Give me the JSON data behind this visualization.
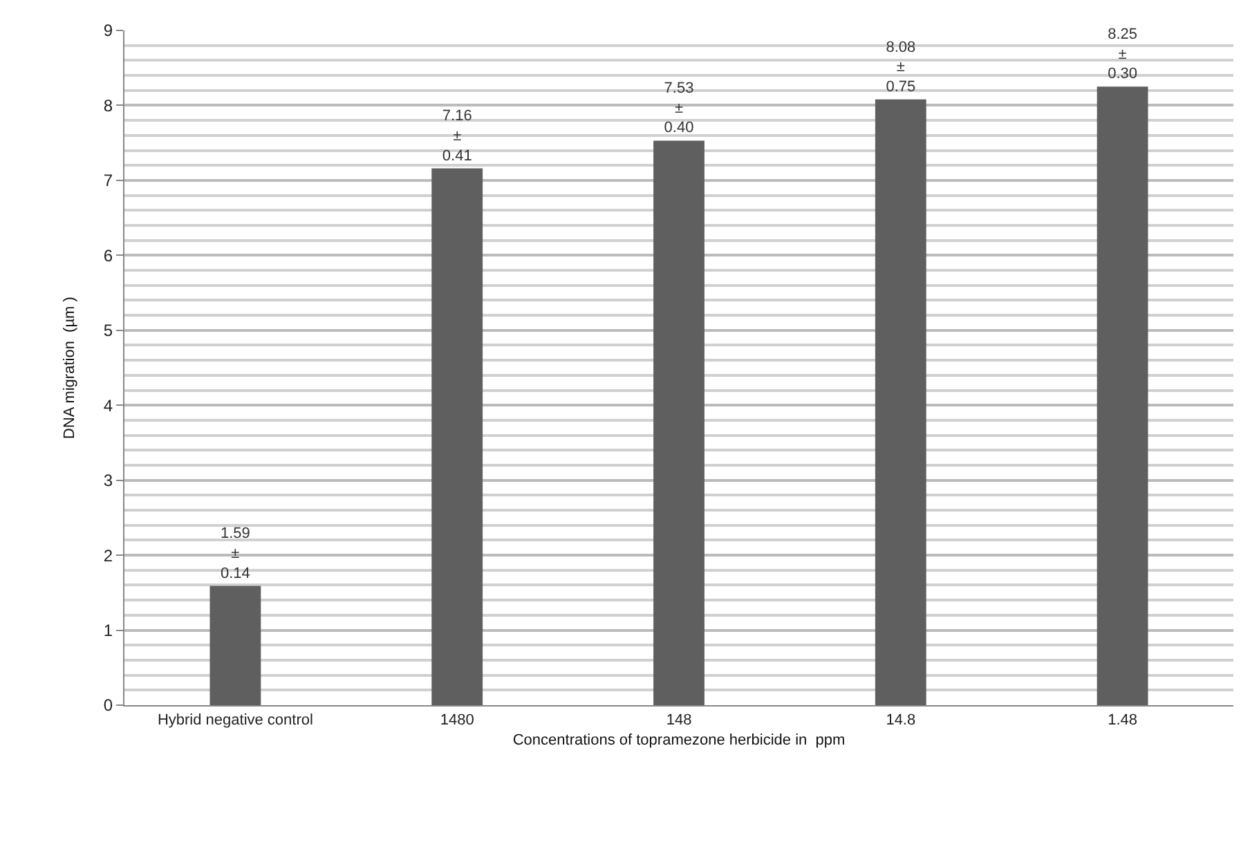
{
  "chart_data": {
    "type": "bar",
    "xlabel": "Concentrations of topramezone herbicide in  ppm",
    "ylabel": "DNA migration  (µm )",
    "categories": [
      "Hybrid negative control",
      "1480",
      "148",
      "14.8",
      "1.48"
    ],
    "values": [
      1.59,
      7.16,
      7.53,
      8.08,
      8.25
    ],
    "value_labels": [
      "1.59\n±\n0.14",
      "7.16\n±\n0.41",
      "7.53\n±\n0.40",
      "8.08\n±\n0.75",
      "8.25\n±\n0.30"
    ],
    "color": "#5f5f5f",
    "ylim": [
      0,
      9
    ],
    "yticks": [
      0,
      1,
      2,
      3,
      4,
      5,
      6,
      7,
      8,
      9
    ],
    "grid": "y"
  }
}
